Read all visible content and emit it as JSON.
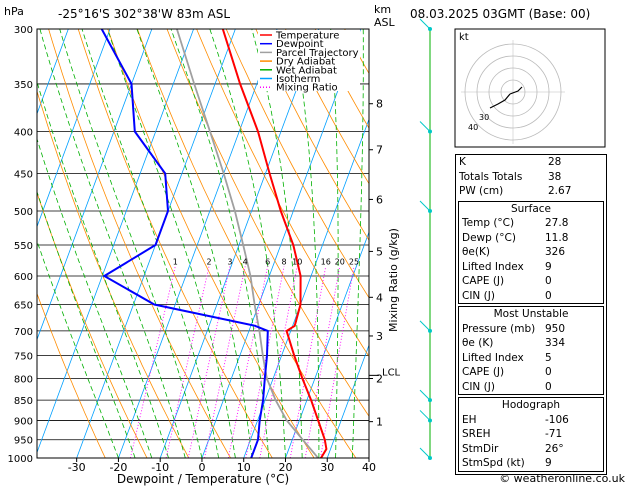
{
  "header": {
    "hpa_unit": "hPa",
    "location": "-25°16'S  302°38'W  83m  ASL",
    "km_unit": "km",
    "asl_unit": "ASL",
    "datetime": "08.03.2025  03GMT  (Base: 00)"
  },
  "legend": {
    "items": [
      {
        "label": "Temperature",
        "color": "#ff0000",
        "style": "solid"
      },
      {
        "label": "Dewpoint",
        "color": "#0000ff",
        "style": "solid"
      },
      {
        "label": "Parcel Trajectory",
        "color": "#a0a0a0",
        "style": "solid"
      },
      {
        "label": "Dry Adiabat",
        "color": "#ff8c00",
        "style": "solid"
      },
      {
        "label": "Wet Adiabat",
        "color": "#00b000",
        "style": "solid"
      },
      {
        "label": "Isotherm",
        "color": "#00a0ff",
        "style": "solid"
      },
      {
        "label": "Mixing Ratio",
        "color": "#ff00ff",
        "style": "dotted"
      }
    ]
  },
  "colors": {
    "temperature": "#ff0000",
    "dewpoint": "#0000ff",
    "parcel": "#a0a0a0",
    "dry_adiabat": "#ff8c00",
    "wet_adiabat": "#00b000",
    "isotherm": "#00a0ff",
    "mixing_ratio": "#ff00ff",
    "wind": "#00c8c8",
    "hodograph_ring": "#bbbbbb"
  },
  "chart_data": {
    "type": "skew-t",
    "xlabel": "Dewpoint / Temperature (°C)",
    "ylabel_right": "Mixing Ratio (g/kg)",
    "x_ticks": [
      -30,
      -20,
      -10,
      0,
      10,
      20,
      30,
      40
    ],
    "xlim_at_1000hPa": [
      -39.5,
      40
    ],
    "ylim_hpa": [
      1000,
      300
    ],
    "y_scale": "log",
    "pressure_levels": [
      300,
      350,
      400,
      450,
      500,
      550,
      600,
      650,
      700,
      750,
      800,
      850,
      900,
      950,
      1000
    ],
    "height_km_ticks": [
      {
        "label": "8",
        "p": 370
      },
      {
        "label": "7",
        "p": 421
      },
      {
        "label": "6",
        "p": 484
      },
      {
        "label": "5",
        "p": 560
      },
      {
        "label": "4",
        "p": 637
      },
      {
        "label": "3",
        "p": 710
      },
      {
        "label": "2",
        "p": 800
      },
      {
        "label": "1",
        "p": 903
      }
    ],
    "lcl": {
      "label": "LCL",
      "p": 793
    },
    "mixing_ratio_labels": [
      "1",
      "2",
      "3",
      "4",
      "6",
      "8",
      "10",
      "16",
      "20",
      "25"
    ],
    "mixing_ratio_values": [
      1,
      2,
      3,
      4,
      6,
      8,
      10,
      16,
      20,
      25
    ],
    "mixing_ratio_label_p": 584,
    "temperature": [
      {
        "p": 1000,
        "t": 28.5
      },
      {
        "p": 975,
        "t": 29.0
      },
      {
        "p": 950,
        "t": 27.8
      },
      {
        "p": 900,
        "t": 24.5
      },
      {
        "p": 850,
        "t": 21.0
      },
      {
        "p": 800,
        "t": 17.0
      },
      {
        "p": 750,
        "t": 13.0
      },
      {
        "p": 700,
        "t": 9.0
      },
      {
        "p": 690,
        "t": 10.5
      },
      {
        "p": 650,
        "t": 10.0
      },
      {
        "p": 600,
        "t": 7.5
      },
      {
        "p": 550,
        "t": 3.0
      },
      {
        "p": 500,
        "t": -3.0
      },
      {
        "p": 450,
        "t": -9.0
      },
      {
        "p": 400,
        "t": -15.5
      },
      {
        "p": 350,
        "t": -24.0
      },
      {
        "p": 300,
        "t": -33.0
      }
    ],
    "dewpoint": [
      {
        "p": 1000,
        "t": 11.8
      },
      {
        "p": 950,
        "t": 11.8
      },
      {
        "p": 900,
        "t": 10.5
      },
      {
        "p": 850,
        "t": 9.5
      },
      {
        "p": 800,
        "t": 8.0
      },
      {
        "p": 750,
        "t": 6.5
      },
      {
        "p": 700,
        "t": 4.5
      },
      {
        "p": 690,
        "t": 1.0
      },
      {
        "p": 650,
        "t": -25.0
      },
      {
        "p": 600,
        "t": -39.5
      },
      {
        "p": 550,
        "t": -30.0
      },
      {
        "p": 500,
        "t": -30.0
      },
      {
        "p": 450,
        "t": -34.0
      },
      {
        "p": 400,
        "t": -45.0
      },
      {
        "p": 350,
        "t": -50.0
      },
      {
        "p": 300,
        "t": -62.0
      }
    ],
    "parcel": [
      {
        "p": 1000,
        "t": 27.8
      },
      {
        "p": 950,
        "t": 22.5
      },
      {
        "p": 900,
        "t": 17.0
      },
      {
        "p": 850,
        "t": 12.5
      },
      {
        "p": 800,
        "t": 8.5
      },
      {
        "p": 750,
        "t": 5.5
      },
      {
        "p": 700,
        "t": 2.5
      },
      {
        "p": 650,
        "t": -1.0
      },
      {
        "p": 600,
        "t": -4.5
      },
      {
        "p": 550,
        "t": -9.0
      },
      {
        "p": 500,
        "t": -14.0
      },
      {
        "p": 450,
        "t": -20.0
      },
      {
        "p": 400,
        "t": -27.0
      },
      {
        "p": 350,
        "t": -35.0
      },
      {
        "p": 300,
        "t": -44.0
      }
    ],
    "wind_barbs_p": [
      300,
      400,
      500,
      700,
      850,
      900,
      1000
    ]
  },
  "hodograph": {
    "unit_label": "kt",
    "ring_labels": [
      "40",
      "30"
    ]
  },
  "indices": {
    "rows": [
      {
        "label": "K",
        "value": "28"
      },
      {
        "label": "Totals Totals",
        "value": "38"
      },
      {
        "label": "PW (cm)",
        "value": "2.67"
      }
    ]
  },
  "surface": {
    "title": "Surface",
    "rows": [
      {
        "label": "Temp (°C)",
        "value": "27.8"
      },
      {
        "label": "Dewp (°C)",
        "value": "11.8"
      },
      {
        "label": "θe(K)",
        "value": "326"
      },
      {
        "label": "Lifted Index",
        "value": "9"
      },
      {
        "label": "CAPE (J)",
        "value": "0"
      },
      {
        "label": "CIN (J)",
        "value": "0"
      }
    ]
  },
  "most_unstable": {
    "title": "Most Unstable",
    "rows": [
      {
        "label": "Pressure (mb)",
        "value": "950"
      },
      {
        "label": "θe (K)",
        "value": "334"
      },
      {
        "label": "Lifted Index",
        "value": "5"
      },
      {
        "label": "CAPE (J)",
        "value": "0"
      },
      {
        "label": "CIN (J)",
        "value": "0"
      }
    ]
  },
  "hodograph_panel": {
    "title": "Hodograph",
    "rows": [
      {
        "label": "EH",
        "value": "-106"
      },
      {
        "label": "SREH",
        "value": "-71"
      },
      {
        "label": "StmDir",
        "value": "26°"
      },
      {
        "label": "StmSpd (kt)",
        "value": "9"
      }
    ]
  },
  "footer": {
    "copyright": "© weatheronline.co.uk"
  }
}
